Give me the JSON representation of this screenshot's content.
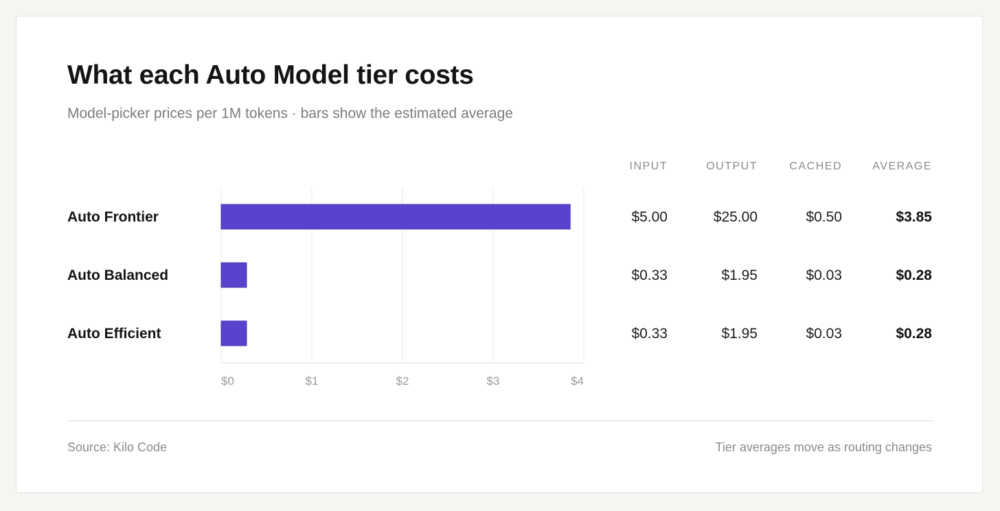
{
  "title": "What each Auto Model tier costs",
  "subtitle": "Model-picker prices per 1M tokens · bars show the estimated average",
  "columns": [
    "INPUT",
    "OUTPUT",
    "CACHED",
    "AVERAGE"
  ],
  "rows": [
    {
      "name": "Auto Frontier",
      "input": "$5.00",
      "output": "$25.00",
      "cached": "$0.50",
      "average": "$3.85"
    },
    {
      "name": "Auto Balanced",
      "input": "$0.33",
      "output": "$1.95",
      "cached": "$0.03",
      "average": "$0.28"
    },
    {
      "name": "Auto Efficient",
      "input": "$0.33",
      "output": "$1.95",
      "cached": "$0.03",
      "average": "$0.28"
    }
  ],
  "chart_data": {
    "type": "bar",
    "orientation": "horizontal",
    "categories": [
      "Auto Frontier",
      "Auto Balanced",
      "Auto Efficient"
    ],
    "values": [
      3.85,
      0.28,
      0.28
    ],
    "xlim": [
      0,
      4
    ],
    "x_ticks": [
      0,
      1,
      2,
      3,
      4
    ],
    "x_tick_labels": [
      "$0",
      "$1",
      "$2",
      "$3",
      "$4"
    ],
    "grid": true,
    "bar_color": "#5a43cc"
  },
  "footer": {
    "source": "Source: Kilo Code",
    "note": "Tier averages move as routing changes"
  }
}
